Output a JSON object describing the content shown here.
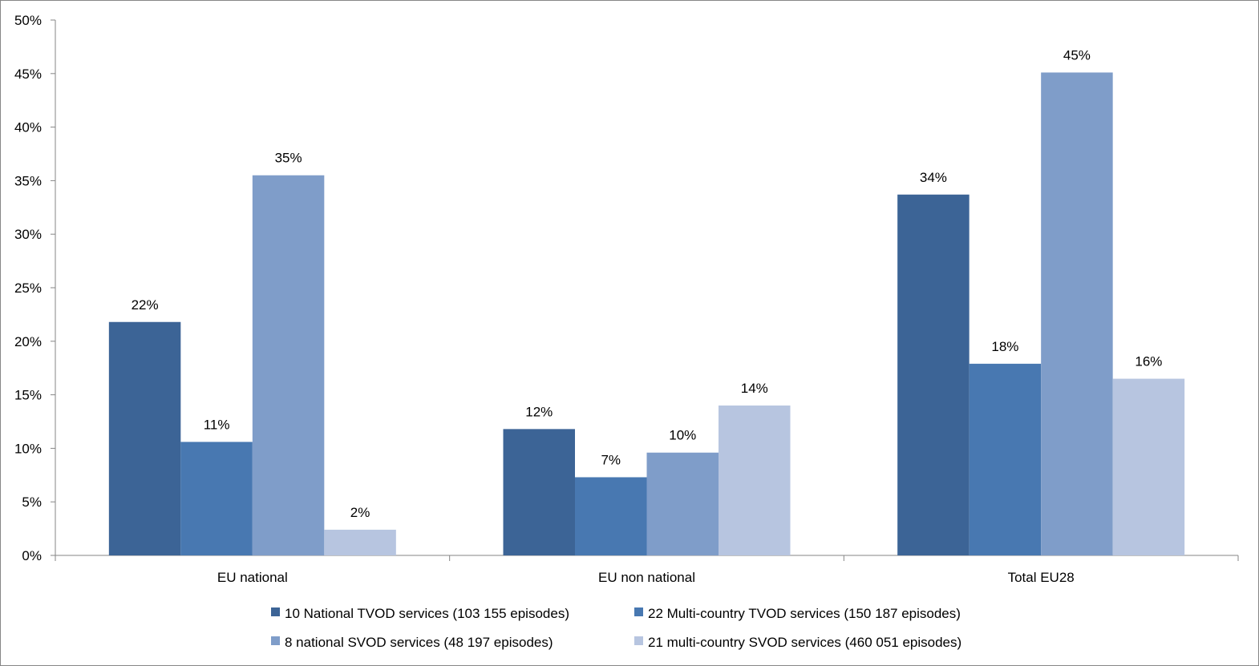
{
  "chart_data": {
    "type": "bar",
    "title": "",
    "xlabel": "",
    "ylabel": "",
    "categories": [
      "EU national",
      "EU non national",
      "Total EU28"
    ],
    "series": [
      {
        "name": "10 National TVOD services (103 155 episodes)",
        "color": "#3C6496",
        "values": [
          0.218,
          0.118,
          0.337
        ],
        "labels": [
          "22%",
          "12%",
          "34%"
        ]
      },
      {
        "name": "22 Multi-country TVOD services (150 187 episodes)",
        "color": "#4878B1",
        "values": [
          0.106,
          0.073,
          0.179
        ],
        "labels": [
          "11%",
          "7%",
          "18%"
        ]
      },
      {
        "name": "8 national SVOD services (48 197 episodes)",
        "color": "#7F9DC9",
        "values": [
          0.355,
          0.096,
          0.451
        ],
        "labels": [
          "35%",
          "10%",
          "45%"
        ]
      },
      {
        "name": "21 multi-country SVOD services (460 051 episodes)",
        "color": "#B7C5E0",
        "values": [
          0.024,
          0.14,
          0.165
        ],
        "labels": [
          "2%",
          "14%",
          "16%"
        ]
      }
    ],
    "ylim": [
      0,
      0.5
    ],
    "yticks": [
      0,
      0.05,
      0.1,
      0.15,
      0.2,
      0.25,
      0.3,
      0.35,
      0.4,
      0.45,
      0.5
    ],
    "ytick_labels": [
      "0%",
      "5%",
      "10%",
      "15%",
      "20%",
      "25%",
      "30%",
      "35%",
      "40%",
      "45%",
      "50%"
    ],
    "grid": false,
    "legend_position": "bottom"
  }
}
